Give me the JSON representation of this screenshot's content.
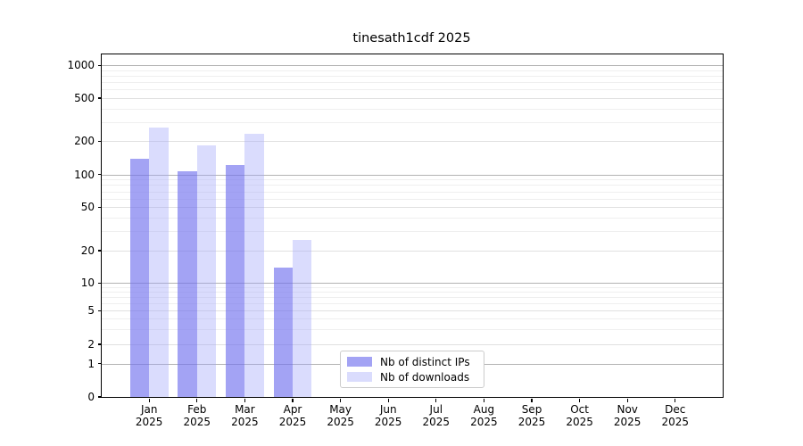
{
  "title": "tinesath1cdf 2025",
  "legend": {
    "items": [
      {
        "label": "Nb of distinct IPs",
        "swatch": "rgba(113,113,238,0.65)"
      },
      {
        "label": "Nb of downloads",
        "swatch": "rgba(158,163,250,0.38)"
      }
    ]
  },
  "axes": {
    "y_tick_labels": [
      "0",
      "1",
      "2",
      "5",
      "10",
      "20",
      "50",
      "100",
      "200",
      "500",
      "1000"
    ],
    "y_tick_values": [
      0,
      1,
      2,
      5,
      10,
      20,
      50,
      100,
      200,
      500,
      1000
    ],
    "x_tick_months": [
      "Jan",
      "Feb",
      "Mar",
      "Apr",
      "May",
      "Jun",
      "Jul",
      "Aug",
      "Sep",
      "Oct",
      "Nov",
      "Dec"
    ],
    "x_tick_year": "2025"
  },
  "chart_data": {
    "type": "bar",
    "title": "tinesath1cdf 2025",
    "categories": [
      "Jan 2025",
      "Feb 2025",
      "Mar 2025",
      "Apr 2025",
      "May 2025",
      "Jun 2025",
      "Jul 2025",
      "Aug 2025",
      "Sep 2025",
      "Oct 2025",
      "Nov 2025",
      "Dec 2025"
    ],
    "series": [
      {
        "name": "Nb of distinct IPs",
        "values": [
          138,
          107,
          121,
          14,
          0,
          0,
          0,
          0,
          0,
          0,
          0,
          0
        ],
        "color": "rgba(113,113,238,0.65)"
      },
      {
        "name": "Nb of downloads",
        "values": [
          267,
          184,
          236,
          25,
          0,
          0,
          0,
          0,
          0,
          0,
          0,
          0
        ],
        "color": "rgba(158,163,250,0.38)"
      }
    ],
    "yscale": "log-like with 0 baseline",
    "yticks": [
      0,
      1,
      2,
      5,
      10,
      20,
      50,
      100,
      200,
      500,
      1000
    ],
    "ylim": [
      0,
      1270
    ],
    "grid": "horizontal major and minor",
    "legend_position": "lower center",
    "xlabel": "",
    "ylabel": ""
  },
  "colors": {
    "grid_minor": "#efefef",
    "grid_major": "#e0e0e0",
    "grid_pow10": "#b3b3b3",
    "spine": "#000000",
    "background": "#ffffff",
    "legend_border": "#cccccc",
    "text": "#000000"
  }
}
